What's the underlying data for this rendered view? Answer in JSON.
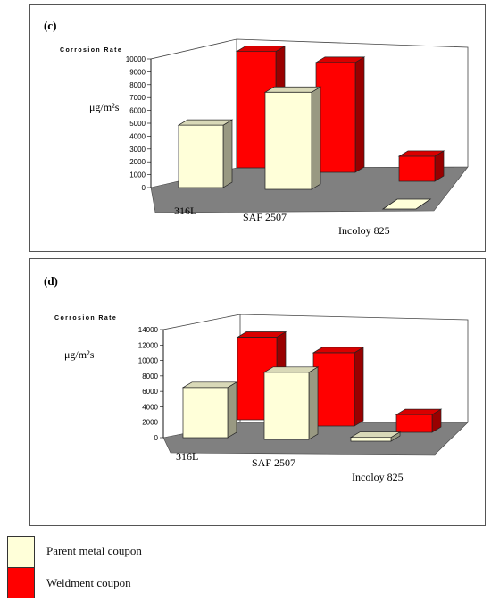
{
  "legend": {
    "parent_label": "Parent metal coupon",
    "weld_label": "Weldment coupon"
  },
  "colors": {
    "parent": "#ffffd9",
    "weld": "#ff0000",
    "floor": "#808080"
  },
  "chart_data": [
    {
      "type": "bar",
      "panel_label": "(c)",
      "title": "Corrosion Rate",
      "ylabel": "μg/m²s",
      "categories": [
        "316L",
        "SAF 2507",
        "Incoloy 825"
      ],
      "yticks": [
        0,
        1000,
        2000,
        3000,
        4000,
        5000,
        6000,
        7000,
        8000,
        9000,
        10000
      ],
      "ylim": [
        0,
        10000
      ],
      "series": [
        {
          "name": "Parent metal coupon",
          "values": [
            4850,
            7550,
            0
          ]
        },
        {
          "name": "Weldment coupon",
          "values": [
            9050,
            8550,
            1950
          ]
        }
      ]
    },
    {
      "type": "bar",
      "panel_label": "(d)",
      "title": "Corrosion Rate",
      "ylabel": "μg/m²s",
      "categories": [
        "316L",
        "SAF 2507",
        "Incoloy 825"
      ],
      "yticks": [
        0,
        2000,
        4000,
        6000,
        8000,
        10000,
        12000,
        14000
      ],
      "ylim": [
        0,
        14000
      ],
      "series": [
        {
          "name": "Parent metal coupon",
          "values": [
            6500,
            8700,
            500
          ]
        },
        {
          "name": "Weldment coupon",
          "values": [
            10700,
            9500,
            2300
          ]
        }
      ]
    }
  ]
}
